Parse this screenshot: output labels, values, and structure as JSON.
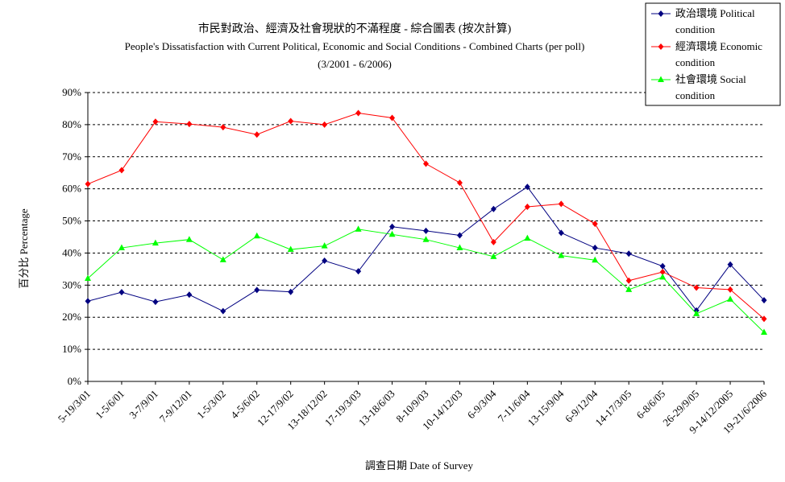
{
  "chart_data": {
    "type": "line",
    "title": "市民對政治、經濟及社會現狀的不滿程度 - 綜合圖表 (按次計算)",
    "subtitle": "People's Dissatisfaction with Current Political, Economic and Social Conditions - Combined Charts  (per poll)",
    "period": "(3/2001 - 6/2006)",
    "xlabel": "調查日期 Date of Survey",
    "ylabel": "百分比 Percentage",
    "ylim": [
      0,
      90
    ],
    "yticks": [
      "0%",
      "10%",
      "20%",
      "30%",
      "40%",
      "50%",
      "60%",
      "70%",
      "80%",
      "90%"
    ],
    "grid": true,
    "legend_position": "top-right",
    "categories": [
      "5-19/3/01",
      "1-5/6/01",
      "3-7/9/01",
      "7-9/12/01",
      "1-5/3/02",
      "4-5/6/02",
      "12-17/9/02",
      "13-18/12/02",
      "17-19/3/03",
      "13-18/6/03",
      "8-10/9/03",
      "10-14/12/03",
      "6-9/3/04",
      "7-11/6/04",
      "13-15/9/04",
      "6-9/12/04",
      "14-17/3/05",
      "6-8/6/05",
      "26-29/9/05",
      "9-14/12/2005",
      "19-21/6/2006"
    ],
    "series": [
      {
        "name": "政治環境 Political condition",
        "color": "#000080",
        "marker": "diamond",
        "values": [
          25,
          27.8,
          24.8,
          27,
          21.9,
          28.5,
          27.9,
          37.6,
          34.3,
          48.2,
          46.9,
          45.5,
          53.7,
          60.6,
          46.3,
          41.6,
          39.8,
          35.9,
          22.1,
          36.4,
          25.3
        ]
      },
      {
        "name": "經濟環境 Economic condition",
        "color": "#ff0000",
        "marker": "diamond",
        "values": [
          61.5,
          65.8,
          80.9,
          80.2,
          79.2,
          76.9,
          81.1,
          80,
          83.6,
          82.1,
          67.8,
          61.9,
          43.4,
          54.4,
          55.3,
          49.1,
          31.4,
          34.1,
          29.2,
          28.6,
          19.5
        ]
      },
      {
        "name": "社會環境 Social condition",
        "color": "#00ff00",
        "marker": "triangle",
        "values": [
          32.1,
          41.6,
          43.1,
          44.2,
          37.9,
          45.3,
          41.1,
          42.2,
          47.4,
          45.8,
          44.2,
          41.6,
          38.9,
          44.6,
          39.2,
          37.8,
          28.6,
          32.5,
          21.1,
          25.6,
          15.3
        ]
      }
    ]
  }
}
